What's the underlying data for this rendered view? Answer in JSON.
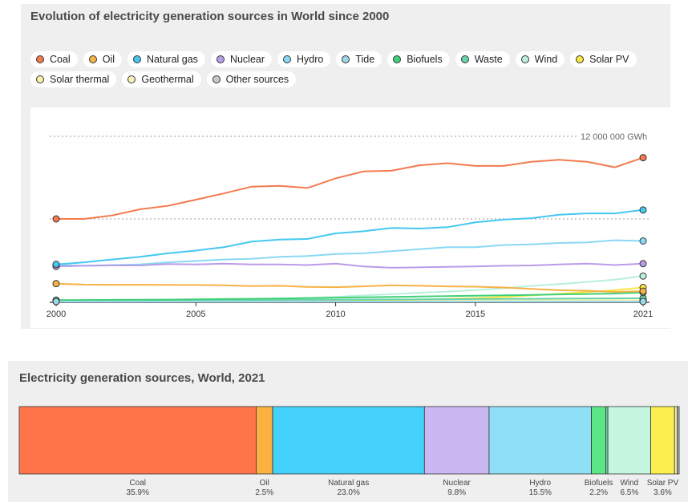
{
  "chart_data": [
    {
      "type": "line",
      "title": "Evolution of electricity generation sources in World since 2000",
      "x": [
        2000,
        2001,
        2002,
        2003,
        2004,
        2005,
        2006,
        2007,
        2008,
        2009,
        2010,
        2011,
        2012,
        2013,
        2014,
        2015,
        2016,
        2017,
        2018,
        2019,
        2020,
        2021
      ],
      "xticks": [
        2000,
        2005,
        2010,
        2015,
        2021
      ],
      "ylim": [
        0,
        12000000
      ],
      "y_reference_label": "12 000 000 GWh",
      "grid": "dotted reference lines",
      "legend_position": "top",
      "series": [
        {
          "name": "Coal",
          "color": "#f47a4e",
          "values": [
            6000000,
            6000000,
            6250000,
            6700000,
            6950000,
            7400000,
            7850000,
            8350000,
            8400000,
            8250000,
            8950000,
            9450000,
            9500000,
            9900000,
            10050000,
            9850000,
            9850000,
            10150000,
            10300000,
            10150000,
            9750000,
            10450000
          ]
        },
        {
          "name": "Oil",
          "color": "#f7b244",
          "values": [
            1300000,
            1230000,
            1220000,
            1220000,
            1210000,
            1200000,
            1180000,
            1120000,
            1140000,
            1060000,
            1040000,
            1100000,
            1180000,
            1140000,
            1100000,
            1080000,
            1020000,
            920000,
            820000,
            780000,
            700000,
            750000
          ]
        },
        {
          "name": "Natural gas",
          "color": "#45c8f0",
          "values": [
            2700000,
            2850000,
            3050000,
            3250000,
            3500000,
            3700000,
            3950000,
            4350000,
            4500000,
            4550000,
            4950000,
            5100000,
            5350000,
            5300000,
            5400000,
            5750000,
            5950000,
            6050000,
            6300000,
            6400000,
            6400000,
            6650000
          ]
        },
        {
          "name": "Nuclear",
          "color": "#b99ce8",
          "values": [
            2550000,
            2600000,
            2620000,
            2620000,
            2720000,
            2700000,
            2750000,
            2700000,
            2700000,
            2650000,
            2750000,
            2550000,
            2450000,
            2480000,
            2520000,
            2550000,
            2600000,
            2620000,
            2700000,
            2750000,
            2650000,
            2750000
          ]
        },
        {
          "name": "Hydro",
          "color": "#8ad8f5",
          "values": [
            2650000,
            2600000,
            2650000,
            2700000,
            2850000,
            2950000,
            3050000,
            3100000,
            3250000,
            3300000,
            3450000,
            3500000,
            3650000,
            3800000,
            3950000,
            3950000,
            4100000,
            4150000,
            4250000,
            4300000,
            4450000,
            4400000
          ]
        },
        {
          "name": "Tide",
          "color": "#9ad8e8",
          "values": [
            600,
            600,
            600,
            600,
            600,
            600,
            600,
            600,
            600,
            600,
            600,
            600,
            800,
            1000,
            1000,
            1000,
            1000,
            1000,
            1000,
            1000,
            1000,
            1000
          ]
        },
        {
          "name": "Biofuels",
          "color": "#3fd07a",
          "values": [
            100000,
            110000,
            120000,
            130000,
            140000,
            160000,
            180000,
            200000,
            220000,
            250000,
            280000,
            300000,
            330000,
            360000,
            390000,
            420000,
            450000,
            480000,
            520000,
            550000,
            580000,
            650000
          ]
        },
        {
          "name": "Waste",
          "color": "#6bd3a8",
          "values": [
            80000,
            85000,
            90000,
            95000,
            100000,
            105000,
            110000,
            115000,
            120000,
            125000,
            130000,
            140000,
            150000,
            160000,
            170000,
            180000,
            190000,
            200000,
            210000,
            220000,
            230000,
            240000
          ]
        },
        {
          "name": "Wind",
          "color": "#b8f0da",
          "values": [
            30000,
            40000,
            50000,
            60000,
            80000,
            100000,
            130000,
            170000,
            220000,
            270000,
            340000,
            440000,
            530000,
            640000,
            710000,
            830000,
            960000,
            1130000,
            1270000,
            1420000,
            1590000,
            1850000
          ]
        },
        {
          "name": "Solar PV",
          "color": "#f7e840",
          "values": [
            1000,
            1000,
            2000,
            3000,
            4000,
            5000,
            6000,
            8000,
            12000,
            20000,
            32000,
            60000,
            100000,
            140000,
            190000,
            250000,
            330000,
            440000,
            560000,
            680000,
            820000,
            1020000
          ]
        },
        {
          "name": "Solar thermal",
          "color": "#f7f3a8",
          "values": [
            500,
            500,
            500,
            500,
            500,
            600,
            600,
            700,
            1000,
            1500,
            2000,
            3000,
            5000,
            6000,
            9000,
            10000,
            11000,
            12000,
            12500,
            13000,
            13500,
            14000
          ]
        },
        {
          "name": "Geothermal",
          "color": "#f7f2b4",
          "values": [
            52000,
            53000,
            54000,
            55000,
            56000,
            58000,
            59000,
            62000,
            64000,
            66000,
            68000,
            69000,
            70000,
            71000,
            74000,
            80000,
            82000,
            85000,
            88000,
            90000,
            92000,
            95000
          ]
        },
        {
          "name": "Other sources",
          "color": "#c8c8c8",
          "values": [
            5000,
            5000,
            5000,
            5000,
            5000,
            5000,
            5000,
            5000,
            5000,
            5000,
            6000,
            6000,
            6000,
            7000,
            7000,
            7000,
            8000,
            8000,
            8000,
            8000,
            9000,
            9000
          ]
        }
      ]
    },
    {
      "type": "bar",
      "orientation": "stacked-horizontal",
      "title": "Electricity generation sources, World, 2021",
      "segments": [
        {
          "name": "Coal",
          "value": 35.9,
          "label": "35.9%",
          "color": "#ff7449"
        },
        {
          "name": "Oil",
          "value": 2.5,
          "label": "2.5%",
          "color": "#fbb040"
        },
        {
          "name": "Natural gas",
          "value": 23.0,
          "label": "23.0%",
          "color": "#44d1fb"
        },
        {
          "name": "Nuclear",
          "value": 9.8,
          "label": "9.8%",
          "color": "#cbb7f2"
        },
        {
          "name": "Hydro",
          "value": 15.5,
          "label": "15.5%",
          "color": "#8fe0f7"
        },
        {
          "name": "Biofuels",
          "value": 2.2,
          "label": "2.2%",
          "color": "#5ce585"
        },
        {
          "name": "Waste",
          "value": 0.3,
          "label": "",
          "color": "#7ad7a8"
        },
        {
          "name": "Wind",
          "value": 6.5,
          "label": "6.5%",
          "color": "#c5f7e0"
        },
        {
          "name": "Solar PV",
          "value": 3.6,
          "label": "3.6%",
          "color": "#fdf04e"
        },
        {
          "name": "Geothermal",
          "value": 0.4,
          "label": "",
          "color": "#f3eea8"
        },
        {
          "name": "Other sources",
          "value": 0.3,
          "label": "",
          "color": "#b5b5b5"
        }
      ]
    }
  ]
}
